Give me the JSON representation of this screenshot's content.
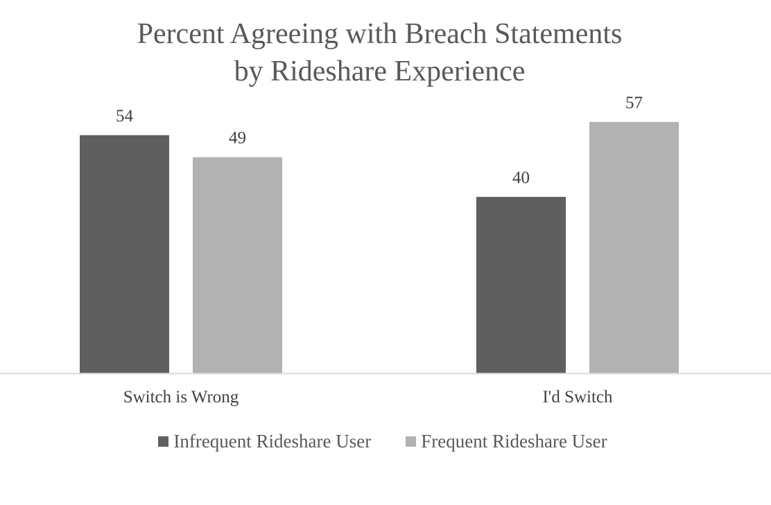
{
  "chart_data": {
    "type": "bar",
    "title": [
      "Percent Agreeing with Breach Statements",
      "by Rideshare Experience"
    ],
    "categories": [
      "Switch is Wrong",
      "I'd Switch"
    ],
    "series": [
      {
        "name": "Infrequent Rideshare User",
        "values": [
          54,
          40
        ],
        "color": "#5f5f5f"
      },
      {
        "name": "Frequent Rideshare User",
        "values": [
          49,
          57
        ],
        "color": "#b2b2b2"
      }
    ],
    "ylim": [
      0,
      62
    ],
    "grid": false,
    "legend_position": "bottom",
    "axis_color": "#d9d9d9"
  }
}
